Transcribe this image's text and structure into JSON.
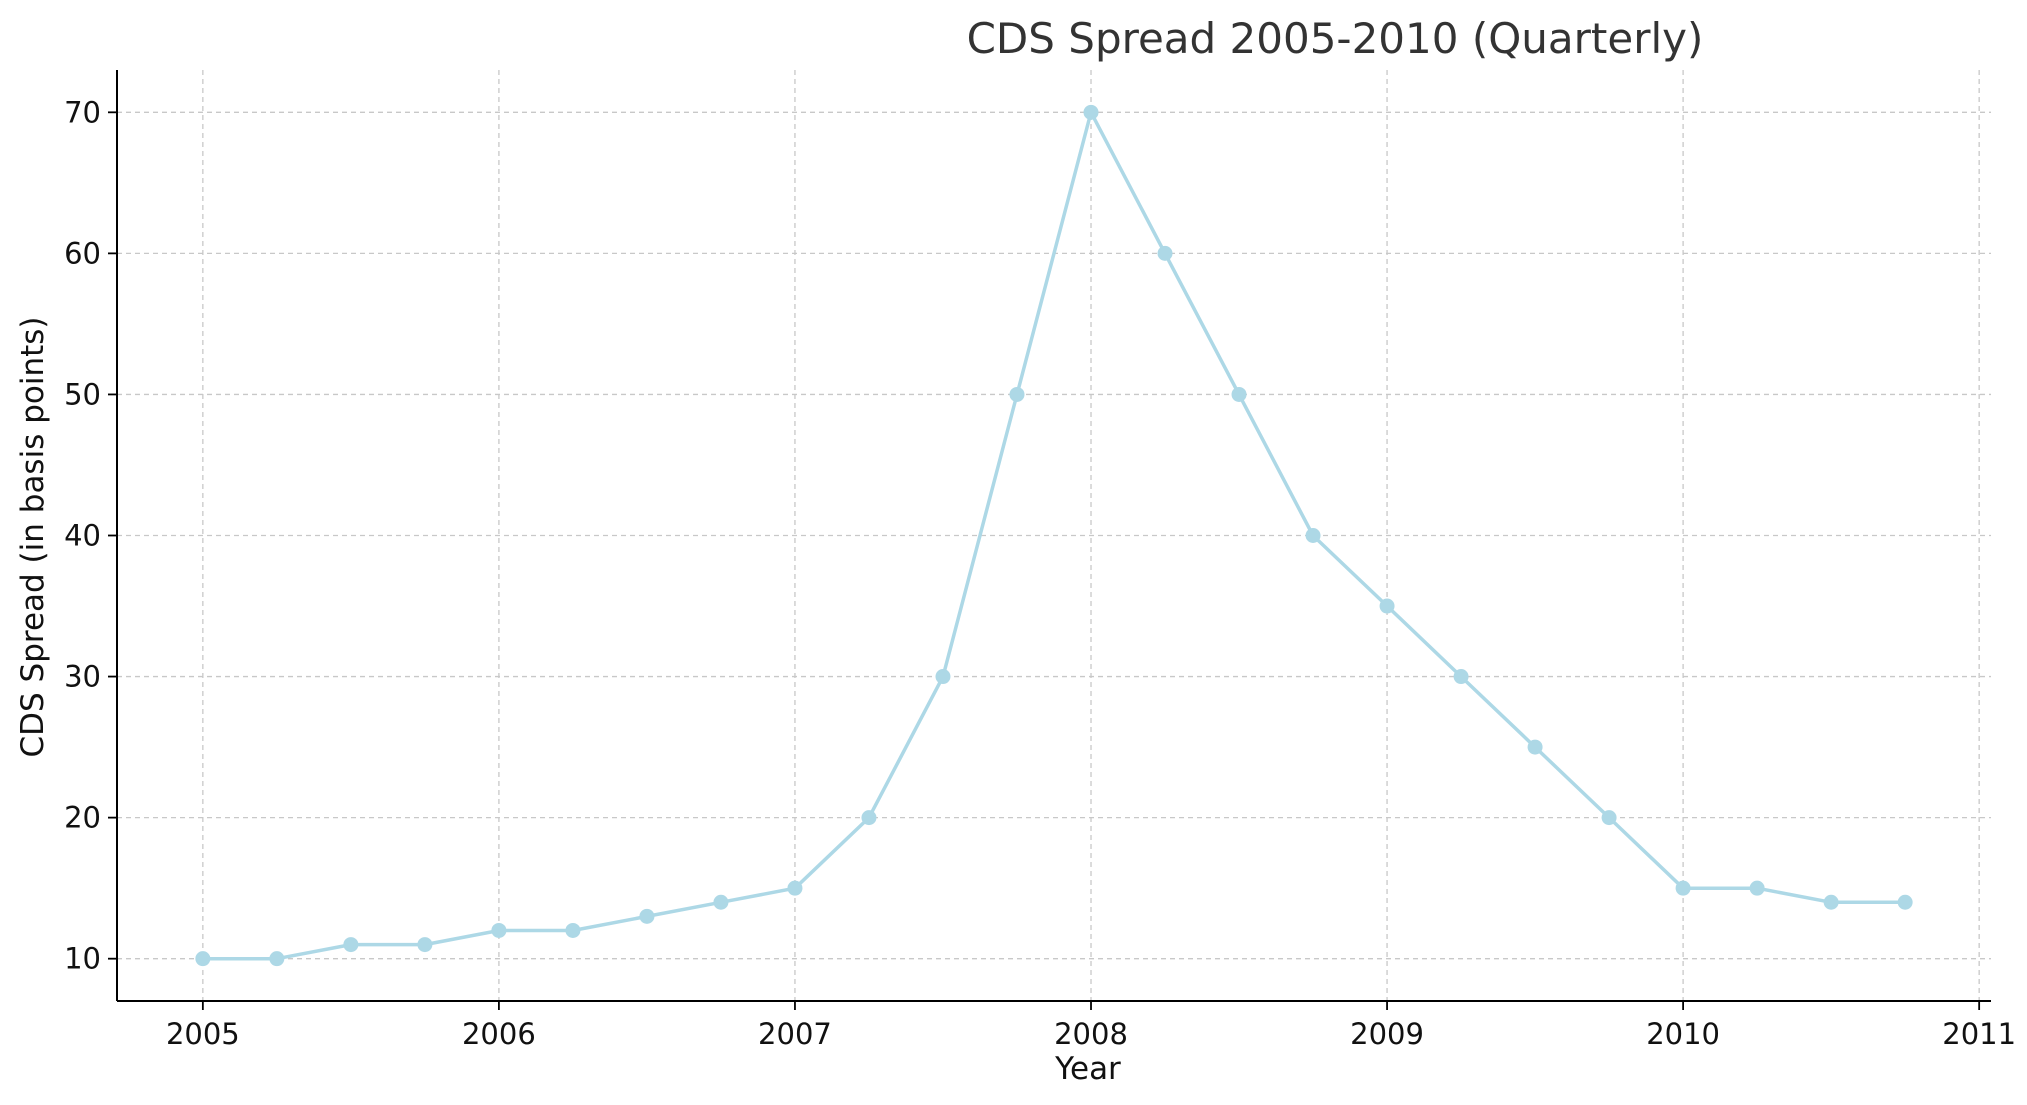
{
  "chart_data": {
    "type": "line",
    "title": "CDS Spread 2005-2010 (Quarterly)",
    "xlabel": "Year",
    "ylabel": "CDS Spread (in basis points)",
    "x_tick_labels": [
      "2005",
      "2006",
      "2007",
      "2008",
      "2009",
      "2010",
      "2011"
    ],
    "y_tick_labels": [
      "10",
      "20",
      "30",
      "40",
      "50",
      "60",
      "70"
    ],
    "x_ticks": [
      2005,
      2006,
      2007,
      2008,
      2009,
      2010,
      2011
    ],
    "y_ticks": [
      10,
      20,
      30,
      40,
      50,
      60,
      70
    ],
    "xlim": [
      2004.71,
      2011.04
    ],
    "ylim": [
      7,
      73
    ],
    "grid": true,
    "legend": null,
    "series": [
      {
        "color": "#add8e6",
        "marker": "circle",
        "x": [
          2005.0,
          2005.25,
          2005.5,
          2005.75,
          2006.0,
          2006.25,
          2006.5,
          2006.75,
          2007.0,
          2007.25,
          2007.5,
          2007.75,
          2008.0,
          2008.25,
          2008.5,
          2008.75,
          2009.0,
          2009.25,
          2009.5,
          2009.75,
          2010.0,
          2010.25,
          2010.5,
          2010.75
        ],
        "values": [
          10,
          10,
          11,
          11,
          12,
          12,
          13,
          14,
          15,
          20,
          30,
          50,
          70,
          60,
          50,
          40,
          35,
          30,
          25,
          20,
          15,
          15,
          14,
          14
        ]
      }
    ]
  }
}
